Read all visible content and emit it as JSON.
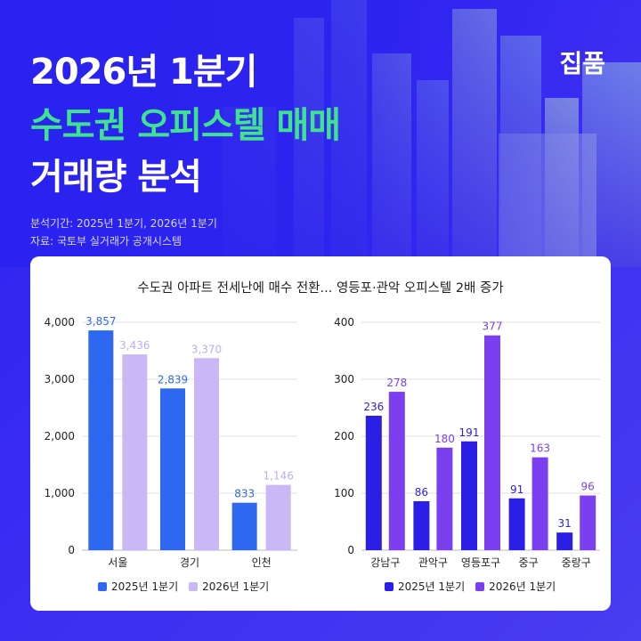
{
  "header": {
    "title_line1": "2026년 1분기",
    "title_line2": "수도권 오피스텔 매매",
    "title_line3": "거래량 분석",
    "brand": "집품",
    "period": "분석기간: 2025년 1분기, 2026년 1분기",
    "source": "자료: 국토부 실거래가 공개시스템"
  },
  "card": {
    "subtitle": "수도권 아파트 전세난에 매수 전환... 영등포·관악 오피스텔 2배 증가"
  },
  "colors": {
    "left_2025": "#2f68f0",
    "left_2026": "#c9b8f5",
    "right_2025": "#2b1fe6",
    "right_2026": "#7b3ff0",
    "title_accent": "#3fe38f"
  },
  "chart_data": [
    {
      "type": "bar",
      "categories": [
        "서울",
        "경기",
        "인천"
      ],
      "series": [
        {
          "name": "2025년 1분기",
          "values": [
            3857,
            2839,
            833
          ]
        },
        {
          "name": "2026년 1분기",
          "values": [
            3436,
            3370,
            1146
          ]
        }
      ],
      "ylim": [
        0,
        4000
      ],
      "yticks": [
        0,
        1000,
        2000,
        3000,
        4000
      ],
      "ytick_labels": [
        "0",
        "1,000",
        "2,000",
        "3,000",
        "4,000"
      ],
      "value_labels": [
        [
          "3,857",
          "2,839",
          "833"
        ],
        [
          "3,436",
          "3,370",
          "1,146"
        ]
      ],
      "grid": true,
      "legend": "bottom"
    },
    {
      "type": "bar",
      "categories": [
        "강남구",
        "관악구",
        "영등포구",
        "중구",
        "중랑구"
      ],
      "series": [
        {
          "name": "2025년 1분기",
          "values": [
            236,
            86,
            191,
            91,
            31
          ]
        },
        {
          "name": "2026년 1분기",
          "values": [
            278,
            180,
            377,
            163,
            96
          ]
        }
      ],
      "ylim": [
        0,
        400
      ],
      "yticks": [
        0,
        100,
        200,
        300,
        400
      ],
      "ytick_labels": [
        "0",
        "100",
        "200",
        "300",
        "400"
      ],
      "value_labels": [
        [
          "236",
          "86",
          "191",
          "91",
          "31"
        ],
        [
          "278",
          "180",
          "377",
          "163",
          "96"
        ]
      ],
      "grid": true,
      "legend": "bottom"
    }
  ]
}
